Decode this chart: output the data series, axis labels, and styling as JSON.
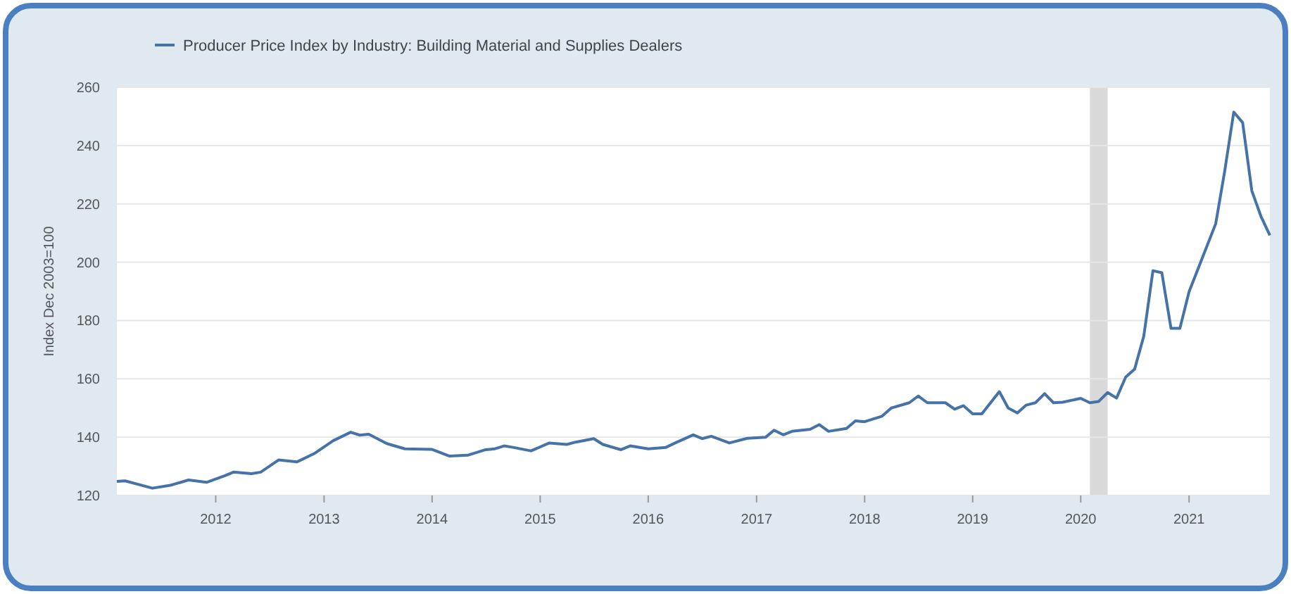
{
  "chart_data": {
    "type": "line",
    "ylabel": "Index Dec 2003=100",
    "x": [
      "2011-02",
      "2011-03",
      "2011-06",
      "2011-08",
      "2011-10",
      "2011-12",
      "2012-02",
      "2012-03",
      "2012-05",
      "2012-06",
      "2012-08",
      "2012-10",
      "2012-12",
      "2013-02",
      "2013-04",
      "2013-05",
      "2013-06",
      "2013-08",
      "2013-10",
      "2014-01",
      "2014-03",
      "2014-05",
      "2014-07",
      "2014-08",
      "2014-09",
      "2014-10",
      "2014-12",
      "2015-02",
      "2015-04",
      "2015-05",
      "2015-07",
      "2015-08",
      "2015-10",
      "2015-11",
      "2016-01",
      "2016-03",
      "2016-04",
      "2016-06",
      "2016-07",
      "2016-08",
      "2016-10",
      "2016-12",
      "2017-02",
      "2017-03",
      "2017-04",
      "2017-05",
      "2017-07",
      "2017-08",
      "2017-09",
      "2017-11",
      "2017-12",
      "2018-01",
      "2018-03",
      "2018-04",
      "2018-06",
      "2018-07",
      "2018-08",
      "2018-10",
      "2018-11",
      "2018-12",
      "2019-01",
      "2019-02",
      "2019-04",
      "2019-05",
      "2019-06",
      "2019-07",
      "2019-08",
      "2019-09",
      "2019-10",
      "2019-11",
      "2020-01",
      "2020-02",
      "2020-03",
      "2020-04",
      "2020-05",
      "2020-06",
      "2020-07",
      "2020-08",
      "2020-09",
      "2020-10",
      "2020-11",
      "2020-12",
      "2021-01",
      "2021-02",
      "2021-04",
      "2021-05",
      "2021-06",
      "2021-07",
      "2021-08",
      "2021-09",
      "2021-10"
    ],
    "series": [
      {
        "name": "Producer Price Index by Industry: Building Material and Supplies Dealers",
        "color": "#4572a7",
        "values": [
          124.8,
          125,
          122.5,
          123.5,
          125.3,
          124.5,
          126.8,
          128,
          127.5,
          128,
          132.2,
          131.5,
          134.5,
          138.8,
          141.7,
          140.7,
          141,
          137.8,
          136,
          135.8,
          133.5,
          133.8,
          135.7,
          136,
          137,
          136.5,
          135.3,
          138,
          137.5,
          138.3,
          139.5,
          137.5,
          135.7,
          137,
          136,
          136.5,
          138,
          140.8,
          139.5,
          140.3,
          138,
          139.6,
          140,
          142.4,
          140.8,
          142,
          142.7,
          144.3,
          142,
          143,
          145.6,
          145.3,
          147.2,
          150,
          151.8,
          154.1,
          151.8,
          151.8,
          149.6,
          150.8,
          148,
          148,
          155.6,
          150,
          148.3,
          151,
          151.8,
          154.9,
          151.8,
          152,
          153.3,
          151.8,
          152.2,
          155.3,
          153.4,
          160.6,
          163.3,
          174.6,
          197.1,
          196.4,
          177.3,
          177.3,
          189.9,
          197.9,
          213.2,
          231,
          251.5,
          247.9,
          224.5,
          215.7,
          209.2
        ]
      }
    ],
    "xlim": [
      "2011-02",
      "2021-10"
    ],
    "xticks": [
      "2012",
      "2013",
      "2014",
      "2015",
      "2016",
      "2017",
      "2018",
      "2019",
      "2020",
      "2021"
    ],
    "ylim": [
      120,
      260
    ],
    "yticks": [
      120,
      140,
      160,
      180,
      200,
      220,
      240,
      260
    ],
    "bands": [
      {
        "axis": "x",
        "from": "2020-02",
        "to": "2020-04",
        "color": "#d9d9d9"
      }
    ],
    "grid": "y",
    "legend": "top left",
    "marker": "none",
    "line_style": "solid"
  }
}
